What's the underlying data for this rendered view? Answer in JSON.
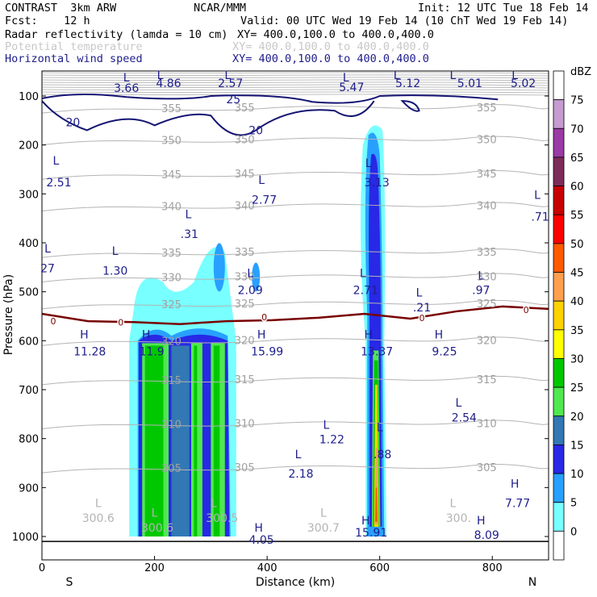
{
  "header": {
    "line1_left": "CONTRAST  3km ARW",
    "line1_mid": "NCAR/MMM",
    "line1_right": "Init: 12 UTC Tue 18 Feb 14",
    "line2_left": "Fcst:    12 h",
    "line2_right": "Valid: 00 UTC Wed 19 Feb 14 (10 ChT Wed 19 Feb 14)",
    "fields": [
      {
        "name": "Radar reflectivity (lamda = 10 cm)",
        "xy": "XY= 400.0,100.0 to 400.0,400.0",
        "color": "#000000"
      },
      {
        "name": "Potential temperature",
        "xy": "XY= 400.0,100.0 to 400.0,400.0",
        "color": "#c8c8c8"
      },
      {
        "name": "Horizontal wind speed",
        "xy": "XY= 400.0,100.0 to 400.0,400.0",
        "color": "#1e1e8c"
      }
    ]
  },
  "chart_data": {
    "type": "contour cross-section",
    "xlabel": "Distance (km)",
    "ylabel": "Pressure (hPa)",
    "xlim": [
      0,
      900
    ],
    "ylim": [
      1050,
      55
    ],
    "x_ticks": [
      "0",
      "200",
      "400",
      "600",
      "800"
    ],
    "y_ticks": [
      "100",
      "200",
      "300",
      "400",
      "500",
      "600",
      "700",
      "800",
      "900",
      "1000"
    ],
    "x_end_labels": {
      "left": "S",
      "right": "N"
    },
    "colorbar": {
      "unit": "dBZ",
      "levels": [
        "75",
        "70",
        "65",
        "60",
        "55",
        "50",
        "45",
        "40",
        "35",
        "30",
        "25",
        "20",
        "15",
        "10",
        "5",
        "0"
      ],
      "colors": [
        "#ffffff",
        "#c69bd0",
        "#9b3aa5",
        "#7d2c5a",
        "#c80000",
        "#ff0000",
        "#ff5a00",
        "#ffa050",
        "#ffd200",
        "#ffff00",
        "#00c800",
        "#50e850",
        "#3278b4",
        "#2828e6",
        "#28a0ff",
        "#78ffff",
        "#ffffff"
      ]
    },
    "reflectivity_cores": [
      {
        "x": [
          155,
          345
        ],
        "top_p": 460,
        "max_dbz": 30
      },
      {
        "x": [
          572,
          612
        ],
        "top_p": 150,
        "max_dbz": 50
      }
    ],
    "theta_contours": [
      {
        "value": "355",
        "p": 125
      },
      {
        "value": "350",
        "p": 190
      },
      {
        "value": "345",
        "p": 260
      },
      {
        "value": "340",
        "p": 325
      },
      {
        "value": "335",
        "p": 420
      },
      {
        "value": "330",
        "p": 470
      },
      {
        "value": "325",
        "p": 525
      },
      {
        "value": "320",
        "p": 600
      },
      {
        "value": "315",
        "p": 680
      },
      {
        "value": "310",
        "p": 770
      },
      {
        "value": "305",
        "p": 860
      }
    ],
    "zero_line": {
      "label": "0",
      "p": [
        545,
        560,
        562,
        566,
        560,
        558,
        553,
        545,
        555,
        540,
        530,
        535
      ]
    },
    "wind_contours": [
      "20",
      "25"
    ],
    "labels": [
      {
        "text": "L",
        "x": 150,
        "p": 70,
        "kind": "wind"
      },
      {
        "text": "3.66",
        "x": 150,
        "p": 92,
        "kind": "wind"
      },
      {
        "text": "4.86",
        "x": 225,
        "p": 82,
        "kind": "wind"
      },
      {
        "text": "L",
        "x": 210,
        "p": 65,
        "kind": "wind"
      },
      {
        "text": "2.57",
        "x": 335,
        "p": 82,
        "kind": "wind"
      },
      {
        "text": "L",
        "x": 330,
        "p": 65,
        "kind": "wind"
      },
      {
        "text": "L",
        "x": 540,
        "p": 70,
        "kind": "wind"
      },
      {
        "text": "5.47",
        "x": 550,
        "p": 90,
        "kind": "wind"
      },
      {
        "text": "L",
        "x": 630,
        "p": 65,
        "kind": "wind"
      },
      {
        "text": "5.12",
        "x": 650,
        "p": 82,
        "kind": "wind"
      },
      {
        "text": "L",
        "x": 730,
        "p": 65,
        "kind": "wind"
      },
      {
        "text": "5.01",
        "x": 760,
        "p": 82,
        "kind": "wind"
      },
      {
        "text": "L",
        "x": 840,
        "p": 65,
        "kind": "wind"
      },
      {
        "text": "5.02",
        "x": 855,
        "p": 82,
        "kind": "wind"
      },
      {
        "text": "25",
        "x": 340,
        "p": 115,
        "kind": "wind"
      },
      {
        "text": "20",
        "x": 55,
        "p": 162,
        "kind": "wind"
      },
      {
        "text": "20",
        "x": 380,
        "p": 178,
        "kind": "wind"
      },
      {
        "text": "L",
        "x": 25,
        "p": 240,
        "kind": "wind"
      },
      {
        "text": "2.51",
        "x": 30,
        "p": 285,
        "kind": "wind"
      },
      {
        "text": "L",
        "x": 580,
        "p": 245,
        "kind": "wind"
      },
      {
        "text": "3.13",
        "x": 595,
        "p": 285,
        "kind": "wind"
      },
      {
        "text": "L",
        "x": 390,
        "p": 280,
        "kind": "wind"
      },
      {
        "text": "2.77",
        "x": 395,
        "p": 320,
        "kind": "wind"
      },
      {
        "text": "L",
        "x": 880,
        "p": 310,
        "kind": "wind"
      },
      {
        "text": ".71",
        "x": 885,
        "p": 355,
        "kind": "wind"
      },
      {
        "text": "L",
        "x": 260,
        "p": 350,
        "kind": "wind"
      },
      {
        "text": ".31",
        "x": 262,
        "p": 390,
        "kind": "wind"
      },
      {
        "text": "L",
        "x": 10,
        "p": 420,
        "kind": "wind"
      },
      {
        "text": "27",
        "x": 10,
        "p": 460,
        "kind": "wind"
      },
      {
        "text": "L",
        "x": 130,
        "p": 425,
        "kind": "wind"
      },
      {
        "text": "1.30",
        "x": 130,
        "p": 465,
        "kind": "wind"
      },
      {
        "text": "L",
        "x": 370,
        "p": 470,
        "kind": "wind"
      },
      {
        "text": "2.09",
        "x": 370,
        "p": 505,
        "kind": "wind"
      },
      {
        "text": "L",
        "x": 570,
        "p": 470,
        "kind": "wind"
      },
      {
        "text": "2.71",
        "x": 575,
        "p": 505,
        "kind": "wind"
      },
      {
        "text": "L",
        "x": 780,
        "p": 475,
        "kind": "wind"
      },
      {
        "text": ".97",
        "x": 780,
        "p": 505,
        "kind": "wind"
      },
      {
        "text": "L",
        "x": 670,
        "p": 510,
        "kind": "wind"
      },
      {
        "text": ".21",
        "x": 675,
        "p": 540,
        "kind": "wind"
      },
      {
        "text": "H",
        "x": 75,
        "p": 595,
        "kind": "wind"
      },
      {
        "text": "11.28",
        "x": 85,
        "p": 630,
        "kind": "wind"
      },
      {
        "text": "H",
        "x": 185,
        "p": 595,
        "kind": "wind"
      },
      {
        "text": "11.9",
        "x": 195,
        "p": 630,
        "kind": "wind"
      },
      {
        "text": "H",
        "x": 390,
        "p": 595,
        "kind": "wind"
      },
      {
        "text": "15.99",
        "x": 400,
        "p": 630,
        "kind": "wind"
      },
      {
        "text": "H",
        "x": 580,
        "p": 595,
        "kind": "wind"
      },
      {
        "text": "13.37",
        "x": 595,
        "p": 630,
        "kind": "wind"
      },
      {
        "text": "H",
        "x": 705,
        "p": 595,
        "kind": "wind"
      },
      {
        "text": "9.25",
        "x": 715,
        "p": 630,
        "kind": "wind"
      },
      {
        "text": "L",
        "x": 740,
        "p": 735,
        "kind": "wind"
      },
      {
        "text": "2.54",
        "x": 750,
        "p": 765,
        "kind": "wind"
      },
      {
        "text": "L",
        "x": 505,
        "p": 780,
        "kind": "wind"
      },
      {
        "text": "1.22",
        "x": 515,
        "p": 810,
        "kind": "wind"
      },
      {
        "text": "L",
        "x": 600,
        "p": 785,
        "kind": "wind"
      },
      {
        "text": ".88",
        "x": 605,
        "p": 840,
        "kind": "wind"
      },
      {
        "text": "L",
        "x": 455,
        "p": 840,
        "kind": "wind"
      },
      {
        "text": "2.18",
        "x": 460,
        "p": 880,
        "kind": "wind"
      },
      {
        "text": "H",
        "x": 840,
        "p": 900,
        "kind": "wind"
      },
      {
        "text": "7.77",
        "x": 845,
        "p": 940,
        "kind": "wind"
      },
      {
        "text": "H",
        "x": 385,
        "p": 990,
        "kind": "wind"
      },
      {
        "text": "4.05",
        "x": 390,
        "p": 1015,
        "kind": "wind"
      },
      {
        "text": "H",
        "x": 575,
        "p": 975,
        "kind": "wind"
      },
      {
        "text": "15.91",
        "x": 585,
        "p": 1000,
        "kind": "wind"
      },
      {
        "text": "H",
        "x": 780,
        "p": 975,
        "kind": "wind"
      },
      {
        "text": "8.09",
        "x": 790,
        "p": 1005,
        "kind": "wind"
      },
      {
        "text": "L",
        "x": 100,
        "p": 940,
        "kind": "theta"
      },
      {
        "text": "300.6",
        "x": 100,
        "p": 970,
        "kind": "theta"
      },
      {
        "text": "L",
        "x": 200,
        "p": 960,
        "kind": "theta"
      },
      {
        "text": "300.6",
        "x": 205,
        "p": 990,
        "kind": "theta"
      },
      {
        "text": "L",
        "x": 305,
        "p": 940,
        "kind": "theta"
      },
      {
        "text": "300.5",
        "x": 320,
        "p": 970,
        "kind": "theta"
      },
      {
        "text": "L",
        "x": 500,
        "p": 960,
        "kind": "theta"
      },
      {
        "text": "300.7",
        "x": 500,
        "p": 990,
        "kind": "theta"
      },
      {
        "text": "L",
        "x": 730,
        "p": 940,
        "kind": "theta"
      },
      {
        "text": "300.",
        "x": 740,
        "p": 970,
        "kind": "theta"
      }
    ]
  }
}
